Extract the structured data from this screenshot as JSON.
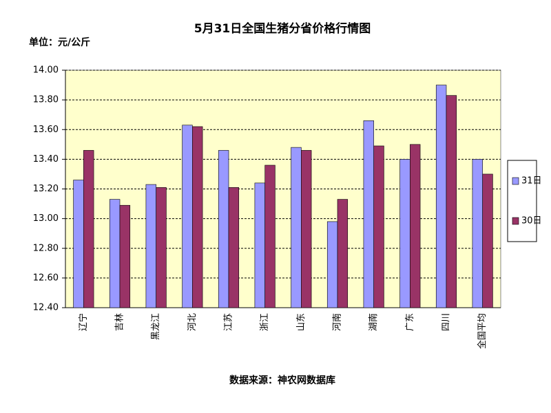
{
  "chart_data": {
    "type": "bar",
    "title": "5月31日全国生猪分省价格行情图",
    "unit_label": "单位：元/公斤",
    "source": "数据来源：神农网数据库",
    "categories": [
      "辽宁",
      "吉林",
      "黑龙江",
      "河北",
      "江苏",
      "浙江",
      "山东",
      "河南",
      "湖南",
      "广东",
      "四川",
      "全国平均"
    ],
    "series": [
      {
        "name": "31日",
        "color": "#9999ff",
        "values": [
          13.26,
          13.13,
          13.23,
          13.63,
          13.46,
          13.24,
          13.48,
          12.98,
          13.66,
          13.4,
          13.9,
          13.4
        ]
      },
      {
        "name": "30日",
        "color": "#993366",
        "values": [
          13.46,
          13.09,
          13.21,
          13.62,
          13.21,
          13.36,
          13.46,
          13.13,
          13.49,
          13.5,
          13.83,
          13.3
        ]
      }
    ],
    "ylim": [
      12.4,
      14.0
    ],
    "yticks": [
      {
        "value": 12.4,
        "label": "12.40"
      },
      {
        "value": 12.6,
        "label": "12.60"
      },
      {
        "value": 12.8,
        "label": "12.80"
      },
      {
        "value": 13.0,
        "label": "13.00"
      },
      {
        "value": 13.2,
        "label": "13.20"
      },
      {
        "value": 13.4,
        "label": "13.40"
      },
      {
        "value": 13.6,
        "label": "13.60"
      },
      {
        "value": 13.8,
        "label": "13.80"
      },
      {
        "value": 14.0,
        "label": "14.00"
      }
    ],
    "grid": true,
    "plot_background": "#ffffcc"
  }
}
